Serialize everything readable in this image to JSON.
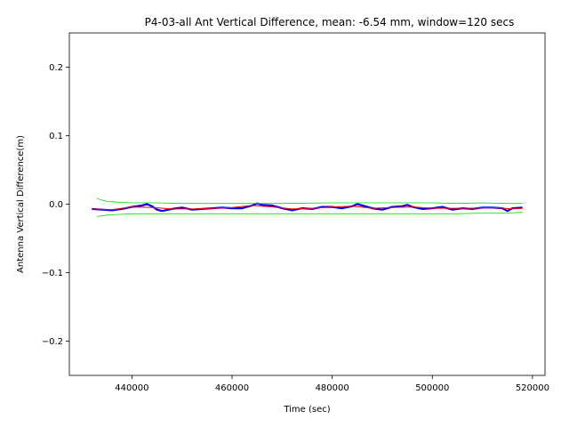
{
  "chart_data": {
    "type": "line",
    "title": "P4-03-all Ant Vertical Difference, mean: -6.54 mm, window=120 secs",
    "xlabel": "Time (sec)",
    "ylabel": "Antenna Vertical Difference(m)",
    "xlim": [
      427500,
      522500
    ],
    "ylim": [
      -0.25,
      0.25
    ],
    "xticks": [
      440000,
      460000,
      480000,
      500000,
      520000
    ],
    "xtick_labels": [
      "440000",
      "460000",
      "480000",
      "500000",
      "520000"
    ],
    "yticks": [
      -0.2,
      -0.1,
      0.0,
      0.1,
      0.2
    ],
    "ytick_labels": [
      "−0.2",
      "−0.1",
      "0.0",
      "0.1",
      "0.2"
    ],
    "grid": false,
    "series": [
      {
        "color": "#0000ff",
        "style": "line",
        "x": [
          432000,
          434000,
          436000,
          438000,
          440000,
          442000,
          443000,
          444000,
          445000,
          446000,
          448000,
          450000,
          452000,
          454000,
          456000,
          458000,
          460000,
          462000,
          464000,
          465000,
          466000,
          468000,
          470000,
          472000,
          474000,
          476000,
          478000,
          480000,
          482000,
          484000,
          485000,
          486000,
          488000,
          490000,
          492000,
          494000,
          495000,
          496000,
          498000,
          500000,
          502000,
          504000,
          506000,
          508000,
          510000,
          512000,
          514000,
          515000,
          516000,
          518000
        ],
        "y": [
          -0.007,
          -0.008,
          -0.009,
          -0.007,
          -0.004,
          -0.002,
          0.0,
          -0.003,
          -0.008,
          -0.01,
          -0.007,
          -0.005,
          -0.008,
          -0.007,
          -0.006,
          -0.005,
          -0.006,
          -0.006,
          -0.002,
          0.001,
          -0.001,
          -0.002,
          -0.006,
          -0.009,
          -0.006,
          -0.007,
          -0.004,
          -0.004,
          -0.006,
          -0.003,
          0.0,
          -0.002,
          -0.006,
          -0.008,
          -0.004,
          -0.003,
          -0.001,
          -0.004,
          -0.007,
          -0.006,
          -0.004,
          -0.008,
          -0.006,
          -0.007,
          -0.005,
          -0.005,
          -0.006,
          -0.01,
          -0.006,
          -0.005
        ]
      },
      {
        "color": "#ff0000",
        "style": "line",
        "x": [
          432000,
          436000,
          440000,
          444000,
          448000,
          452000,
          456000,
          460000,
          464000,
          468000,
          472000,
          476000,
          480000,
          484000,
          488000,
          492000,
          496000,
          500000,
          504000,
          508000,
          512000,
          516000,
          518000
        ],
        "y": [
          -0.007,
          -0.008,
          -0.004,
          -0.005,
          -0.007,
          -0.007,
          -0.006,
          -0.005,
          -0.002,
          -0.004,
          -0.007,
          -0.006,
          -0.004,
          -0.003,
          -0.006,
          -0.005,
          -0.004,
          -0.006,
          -0.006,
          -0.006,
          -0.005,
          -0.007,
          -0.006
        ]
      },
      {
        "color": "#00dd00",
        "style": "line",
        "x": [
          433000,
          435000,
          437000,
          440000,
          445000,
          450000,
          455000,
          460000,
          470000,
          480000,
          490000,
          500000,
          505000,
          510000,
          515000,
          518000
        ],
        "y": [
          0.008,
          0.004,
          0.003,
          0.002,
          0.002,
          0.001,
          0.001,
          0.001,
          0.001,
          0.002,
          0.002,
          0.002,
          0.001,
          0.002,
          0.001,
          0.001
        ]
      },
      {
        "color": "#00dd00",
        "style": "line",
        "x": [
          433000,
          435000,
          437000,
          440000,
          445000,
          450000,
          455000,
          460000,
          470000,
          480000,
          490000,
          500000,
          505000,
          510000,
          515000,
          518000
        ],
        "y": [
          -0.018,
          -0.016,
          -0.015,
          -0.014,
          -0.014,
          -0.014,
          -0.014,
          -0.014,
          -0.014,
          -0.014,
          -0.014,
          -0.014,
          -0.014,
          -0.013,
          -0.013,
          -0.012
        ]
      }
    ]
  }
}
